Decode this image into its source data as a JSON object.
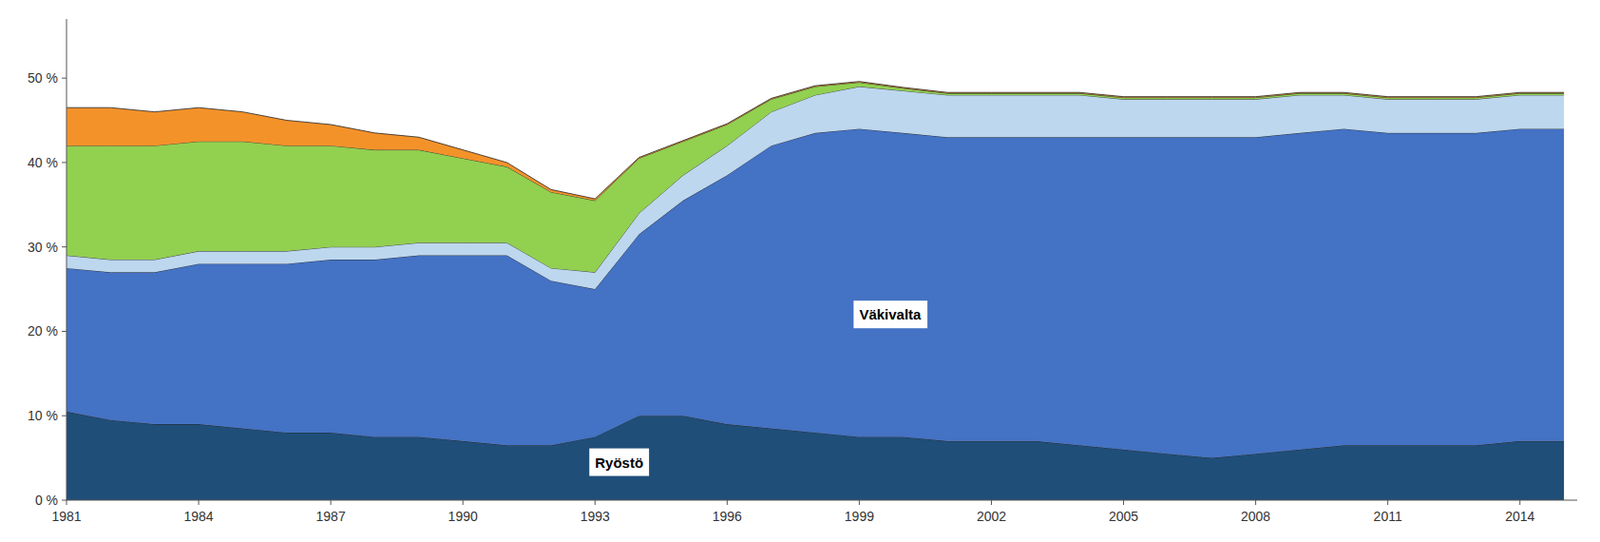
{
  "chart_data": {
    "type": "area",
    "stacked": true,
    "grid": false,
    "x": [
      1981,
      1982,
      1983,
      1984,
      1985,
      1986,
      1987,
      1988,
      1989,
      1990,
      1991,
      1992,
      1993,
      1994,
      1995,
      1996,
      1997,
      1998,
      1999,
      2000,
      2001,
      2002,
      2003,
      2004,
      2005,
      2006,
      2007,
      2008,
      2009,
      2010,
      2011,
      2012,
      2013,
      2014,
      2015
    ],
    "series": [
      {
        "color": "#1f4e79",
        "values": [
          10.5,
          9.5,
          9.0,
          9.0,
          8.5,
          8.0,
          8.0,
          7.5,
          7.5,
          7.0,
          6.5,
          6.5,
          7.5,
          10.0,
          10.0,
          9.0,
          8.5,
          8.0,
          7.5,
          7.5,
          7.0,
          7.0,
          7.0,
          6.5,
          6.0,
          5.5,
          5.0,
          5.5,
          6.0,
          6.5,
          6.5,
          6.5,
          6.5,
          7.0,
          7.0
        ]
      },
      {
        "color": "#4472c4",
        "values": [
          17.0,
          17.5,
          18.0,
          19.0,
          19.5,
          20.0,
          20.5,
          21.0,
          21.5,
          22.0,
          22.5,
          19.5,
          17.5,
          21.5,
          25.5,
          29.5,
          33.5,
          35.5,
          36.5,
          36.0,
          36.0,
          36.0,
          36.0,
          36.5,
          37.0,
          37.5,
          38.0,
          37.5,
          37.5,
          37.5,
          37.0,
          37.0,
          37.0,
          37.0,
          37.0
        ]
      },
      {
        "color": "#bdd7ee",
        "values": [
          1.5,
          1.5,
          1.5,
          1.5,
          1.5,
          1.5,
          1.5,
          1.5,
          1.5,
          1.5,
          1.5,
          1.5,
          2.0,
          2.5,
          3.0,
          3.5,
          4.0,
          4.5,
          5.0,
          5.0,
          5.0,
          5.0,
          5.0,
          5.0,
          4.5,
          4.5,
          4.5,
          4.5,
          4.5,
          4.0,
          4.0,
          4.0,
          4.0,
          4.0,
          4.0
        ]
      },
      {
        "color": "#92d050",
        "values": [
          13.0,
          13.5,
          13.5,
          13.0,
          13.0,
          12.5,
          12.0,
          11.5,
          11.0,
          10.0,
          9.0,
          9.0,
          8.5,
          6.5,
          4.0,
          2.5,
          1.5,
          1.0,
          0.5,
          0.3,
          0.2,
          0.2,
          0.2,
          0.2,
          0.2,
          0.2,
          0.2,
          0.2,
          0.2,
          0.2,
          0.2,
          0.2,
          0.2,
          0.2,
          0.2
        ]
      },
      {
        "color": "#f4922a",
        "values": [
          4.5,
          4.5,
          4.0,
          4.0,
          3.5,
          3.0,
          2.5,
          2.0,
          1.5,
          1.0,
          0.5,
          0.3,
          0.2,
          0.1,
          0.1,
          0.1,
          0.1,
          0.1,
          0.1,
          0.1,
          0.1,
          0.1,
          0.1,
          0.1,
          0.1,
          0.1,
          0.1,
          0.1,
          0.1,
          0.1,
          0.1,
          0.1,
          0.1,
          0.1,
          0.1
        ]
      }
    ],
    "xlim": [
      1981,
      2015.3
    ],
    "xticks": [
      1981,
      1984,
      1987,
      1990,
      1993,
      1996,
      1999,
      2002,
      2005,
      2008,
      2011,
      2014
    ],
    "ylim": [
      0,
      57
    ],
    "yticks": [
      {
        "value": 0,
        "label": "0 %"
      },
      {
        "value": 10,
        "label": "10 %"
      },
      {
        "value": 20,
        "label": "20 %"
      },
      {
        "value": 30,
        "label": "30 %"
      },
      {
        "value": 40,
        "label": "40 %"
      },
      {
        "value": 50,
        "label": "50 %"
      }
    ],
    "annotations": [
      {
        "text": "Väkivalta",
        "x": 1999,
        "y": 22
      },
      {
        "text": "Ryöstö",
        "x": 1993,
        "y": 4.5
      }
    ]
  }
}
